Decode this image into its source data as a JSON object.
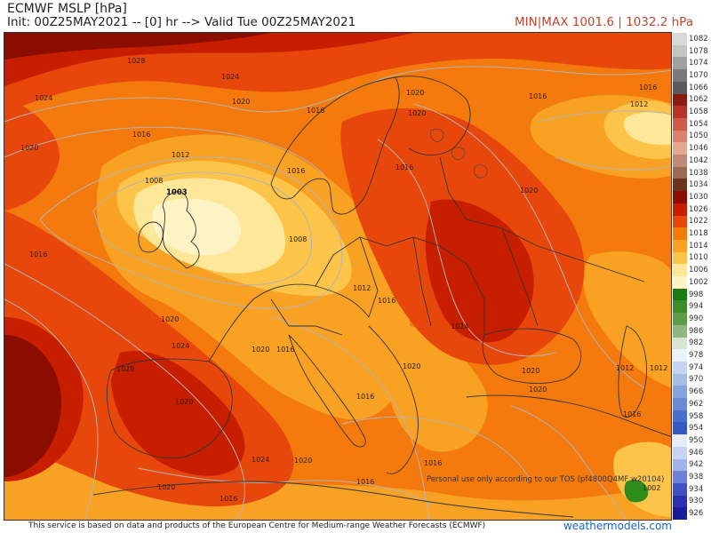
{
  "header": {
    "title": "ECMWF MSLP [hPa]",
    "init_line": "Init: 00Z25MAY2021 -- [0] hr --> Valid Tue 00Z25MAY2021",
    "minmax": "MIN|MAX 1001.6 | 1032.2 hPa"
  },
  "colors": {
    "deep_red": "#8b0d00",
    "red": "#c81e00",
    "orange_red": "#e8470c",
    "orange": "#f47a0d",
    "light_orange": "#f8a123",
    "yellow_orange": "#fcc54a",
    "pale_yellow": "#fde89a",
    "cream": "#fef3c4",
    "low_green": "#2f8b1a",
    "isobar": "#b4b4b4",
    "coast": "#333333"
  },
  "legend": {
    "items": [
      {
        "label": "1082",
        "color": "#d8d8d8"
      },
      {
        "label": "1078",
        "color": "#c4c4c4"
      },
      {
        "label": "1074",
        "color": "#a0a0a0"
      },
      {
        "label": "1070",
        "color": "#7a7a7a"
      },
      {
        "label": "1066",
        "color": "#5a5a5a"
      },
      {
        "label": "1062",
        "color": "#8b1a10"
      },
      {
        "label": "1058",
        "color": "#b8322a"
      },
      {
        "label": "1054",
        "color": "#d05a4a"
      },
      {
        "label": "1050",
        "color": "#d9806e"
      },
      {
        "label": "1046",
        "color": "#e0a890"
      },
      {
        "label": "1042",
        "color": "#c08878"
      },
      {
        "label": "1038",
        "color": "#9b6a55"
      },
      {
        "label": "1034",
        "color": "#6a3320"
      },
      {
        "label": "1030",
        "color": "#8b0d00"
      },
      {
        "label": "1026",
        "color": "#c81e00"
      },
      {
        "label": "1022",
        "color": "#e8470c"
      },
      {
        "label": "1018",
        "color": "#f47a0d"
      },
      {
        "label": "1014",
        "color": "#f8a123"
      },
      {
        "label": "1010",
        "color": "#fcc54a"
      },
      {
        "label": "1006",
        "color": "#fde89a"
      },
      {
        "label": "1002",
        "color": "#fef3c4"
      },
      {
        "label": "998",
        "color": "#1b7a12"
      },
      {
        "label": "994",
        "color": "#3d8c2a"
      },
      {
        "label": "990",
        "color": "#5f9a48"
      },
      {
        "label": "986",
        "color": "#8fb680"
      },
      {
        "label": "982",
        "color": "#d6e4d2"
      },
      {
        "label": "978",
        "color": "#eef2fa"
      },
      {
        "label": "974",
        "color": "#c7d4f0"
      },
      {
        "label": "970",
        "color": "#a8bce8"
      },
      {
        "label": "966",
        "color": "#88a2de"
      },
      {
        "label": "962",
        "color": "#6a8ad6"
      },
      {
        "label": "958",
        "color": "#4a6ecf"
      },
      {
        "label": "954",
        "color": "#3458c4"
      },
      {
        "label": "950",
        "color": "#e8ecf8"
      },
      {
        "label": "946",
        "color": "#c8d2f2"
      },
      {
        "label": "942",
        "color": "#a2b2ea"
      },
      {
        "label": "938",
        "color": "#6c80d8"
      },
      {
        "label": "934",
        "color": "#4150c4"
      },
      {
        "label": "930",
        "color": "#2a2fb0"
      },
      {
        "label": "926",
        "color": "#1a1a9a"
      }
    ]
  },
  "map": {
    "low_label": "1003",
    "isobar_labels": [
      "1028",
      "1024",
      "1024",
      "1020",
      "1020",
      "1016",
      "1012",
      "1008",
      "1016",
      "1016",
      "1020",
      "1020",
      "1016",
      "1016",
      "1016",
      "1012",
      "1020",
      "1008",
      "1012",
      "1016",
      "1020",
      "1024",
      "1020",
      "1028",
      "1016",
      "1020",
      "1016",
      "1024",
      "1020",
      "1020",
      "1020",
      "1016",
      "1016",
      "1020",
      "1020",
      "1016",
      "1016",
      "1012",
      "1012",
      "1016",
      "1024",
      "1002"
    ]
  },
  "footer": {
    "source_note": "This service is based on data and products of the European Centre for Medium-range Weather Forecasts (ECMWF)",
    "brand": "weathermodels.com",
    "tos": "Personal use only according to our TOS (pf4800Q4MF w20104)"
  }
}
